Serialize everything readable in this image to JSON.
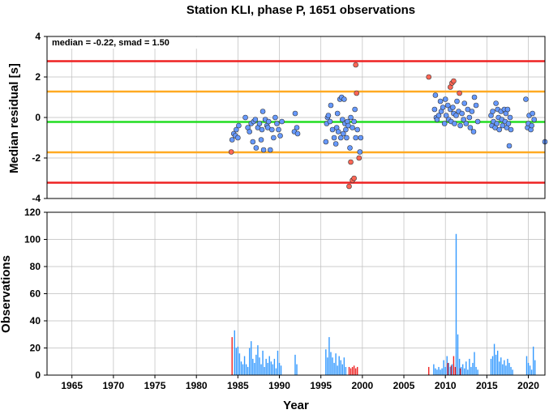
{
  "chart_data": [
    {
      "type": "scatter",
      "title": "Station KLI, phase P, 1651 observations",
      "annotation": "median = -0.22, smad = 1.50",
      "ylabel": "Median residual [s]",
      "xlim": [
        1962,
        2022
      ],
      "ylim": [
        -4,
        4
      ],
      "yticks": [
        -4,
        -2,
        0,
        2,
        4
      ],
      "grid": true,
      "reference_lines": [
        {
          "name": "median",
          "y": -0.22,
          "color": "#22dd22"
        },
        {
          "name": "median + 1 smad",
          "y": 1.28,
          "color": "#ffaa22"
        },
        {
          "name": "median - 1 smad",
          "y": -1.72,
          "color": "#ffaa22"
        },
        {
          "name": "median + 2 smad",
          "y": 2.78,
          "color": "#ee2222"
        },
        {
          "name": "median - 2 smad",
          "y": -3.22,
          "color": "#ee2222"
        }
      ],
      "series": [
        {
          "color": "#6699ff",
          "points": [
            [
              1984.3,
              -1.1
            ],
            [
              1984.5,
              -0.8
            ],
            [
              1984.7,
              -0.9
            ],
            [
              1984.8,
              -0.6
            ],
            [
              1985.0,
              -1.0
            ],
            [
              1985.1,
              -0.4
            ],
            [
              1985.9,
              0.0
            ],
            [
              1986.2,
              -0.5
            ],
            [
              1986.4,
              -0.7
            ],
            [
              1986.6,
              -0.3
            ],
            [
              1986.8,
              -1.2
            ],
            [
              1986.9,
              -0.2
            ],
            [
              1987.1,
              -0.1
            ],
            [
              1987.2,
              -1.5
            ],
            [
              1987.4,
              -0.5
            ],
            [
              1987.6,
              -0.3
            ],
            [
              1987.8,
              -1.1
            ],
            [
              1987.9,
              -0.6
            ],
            [
              1988.0,
              0.3
            ],
            [
              1988.1,
              -1.6
            ],
            [
              1988.3,
              -0.1
            ],
            [
              1988.5,
              -0.4
            ],
            [
              1988.6,
              -0.5
            ],
            [
              1988.7,
              -0.2
            ],
            [
              1988.9,
              -1.6
            ],
            [
              1989.1,
              -0.6
            ],
            [
              1989.3,
              -1.0
            ],
            [
              1989.5,
              0.0
            ],
            [
              1989.7,
              -0.3
            ],
            [
              1989.9,
              -0.6
            ],
            [
              1990.1,
              -0.9
            ],
            [
              1990.3,
              -0.2
            ],
            [
              1991.8,
              -0.7
            ],
            [
              1991.9,
              0.2
            ],
            [
              1992.1,
              -0.5
            ],
            [
              1992.2,
              -0.8
            ],
            [
              1995.6,
              -1.2
            ],
            [
              1995.7,
              -0.3
            ],
            [
              1995.8,
              0.0
            ],
            [
              1995.9,
              0.1
            ],
            [
              1996.1,
              -0.2
            ],
            [
              1996.2,
              0.6
            ],
            [
              1996.4,
              -0.6
            ],
            [
              1996.6,
              -1.0
            ],
            [
              1996.8,
              -1.3
            ],
            [
              1996.9,
              -0.5
            ],
            [
              1997.0,
              0.2
            ],
            [
              1997.1,
              -0.7
            ],
            [
              1997.3,
              0.9
            ],
            [
              1997.4,
              -1.0
            ],
            [
              1997.5,
              1.0
            ],
            [
              1997.6,
              -0.1
            ],
            [
              1997.7,
              -0.8
            ],
            [
              1997.8,
              0.9
            ],
            [
              1997.9,
              -0.3
            ],
            [
              1998.0,
              -0.6
            ],
            [
              1998.1,
              -1.0
            ],
            [
              1998.2,
              -0.2
            ],
            [
              1998.3,
              -0.4
            ],
            [
              1998.5,
              -1.5
            ],
            [
              1998.6,
              0.0
            ],
            [
              1998.8,
              -0.5
            ],
            [
              1999.0,
              -0.2
            ],
            [
              1999.1,
              0.4
            ],
            [
              1999.2,
              -1.0
            ],
            [
              1999.4,
              -0.6
            ],
            [
              1999.7,
              -1.7
            ],
            [
              1999.8,
              -1.0
            ],
            [
              2008.7,
              0.4
            ],
            [
              2008.8,
              1.1
            ],
            [
              2008.9,
              0.0
            ],
            [
              2009.0,
              -0.1
            ],
            [
              2009.2,
              0.1
            ],
            [
              2009.4,
              0.8
            ],
            [
              2009.5,
              0.3
            ],
            [
              2009.7,
              0.5
            ],
            [
              2009.9,
              -0.3
            ],
            [
              2010.0,
              0.9
            ],
            [
              2010.1,
              0.1
            ],
            [
              2010.3,
              0.6
            ],
            [
              2010.4,
              -0.1
            ],
            [
              2010.6,
              0.4
            ],
            [
              2010.7,
              -0.2
            ],
            [
              2010.9,
              0.5
            ],
            [
              2011.0,
              0.2
            ],
            [
              2011.1,
              -0.3
            ],
            [
              2011.3,
              0.1
            ],
            [
              2011.4,
              0.8
            ],
            [
              2011.6,
              0.3
            ],
            [
              2011.8,
              -0.4
            ],
            [
              2012.0,
              0.2
            ],
            [
              2012.2,
              -0.1
            ],
            [
              2012.3,
              0.7
            ],
            [
              2012.5,
              -0.3
            ],
            [
              2012.7,
              0.4
            ],
            [
              2012.9,
              0.0
            ],
            [
              2013.0,
              -0.5
            ],
            [
              2013.2,
              0.3
            ],
            [
              2013.4,
              -0.7
            ],
            [
              2013.5,
              1.0
            ],
            [
              2013.7,
              0.6
            ],
            [
              2013.9,
              -0.2
            ],
            [
              2015.5,
              0.1
            ],
            [
              2015.6,
              -0.4
            ],
            [
              2015.7,
              0.3
            ],
            [
              2015.8,
              -0.2
            ],
            [
              2016.0,
              -0.5
            ],
            [
              2016.1,
              0.7
            ],
            [
              2016.2,
              -0.3
            ],
            [
              2016.3,
              0.4
            ],
            [
              2016.4,
              0.0
            ],
            [
              2016.5,
              -0.6
            ],
            [
              2016.7,
              0.3
            ],
            [
              2016.8,
              -0.1
            ],
            [
              2016.9,
              -0.4
            ],
            [
              2017.1,
              0.4
            ],
            [
              2017.2,
              -0.2
            ],
            [
              2017.3,
              0.2
            ],
            [
              2017.4,
              -0.5
            ],
            [
              2017.5,
              0.4
            ],
            [
              2017.6,
              -0.3
            ],
            [
              2017.7,
              -1.4
            ],
            [
              2017.8,
              0.0
            ],
            [
              2017.9,
              -0.6
            ],
            [
              2019.7,
              0.9
            ],
            [
              2019.9,
              -0.5
            ],
            [
              2020.0,
              -0.3
            ],
            [
              2020.1,
              0.1
            ],
            [
              2020.3,
              -0.6
            ],
            [
              2020.4,
              -0.4
            ],
            [
              2020.5,
              0.2
            ],
            [
              2020.7,
              -0.1
            ],
            [
              2022.0,
              -1.2
            ]
          ]
        },
        {
          "color": "#ff6655",
          "points": [
            [
              1984.2,
              -1.7
            ],
            [
              1998.4,
              -3.4
            ],
            [
              1998.6,
              -2.2
            ],
            [
              1998.8,
              -3.1
            ],
            [
              1999.0,
              -3.0
            ],
            [
              1999.2,
              2.6
            ],
            [
              1999.3,
              1.2
            ],
            [
              1999.6,
              -2.0
            ],
            [
              2008.0,
              2.0
            ],
            [
              2010.6,
              1.5
            ],
            [
              2010.8,
              1.7
            ],
            [
              2011.0,
              1.8
            ],
            [
              2011.7,
              1.2
            ]
          ]
        }
      ]
    },
    {
      "type": "bar",
      "xlabel": "Year",
      "ylabel": "Observations",
      "xlim": [
        1962,
        2022
      ],
      "ylim": [
        0,
        120
      ],
      "xticks": [
        1965,
        1970,
        1975,
        1980,
        1985,
        1990,
        1995,
        2000,
        2005,
        2010,
        2015,
        2020
      ],
      "yticks": [
        0,
        20,
        40,
        60,
        80,
        100,
        120
      ],
      "grid": true,
      "series": [
        {
          "color": "#3399ff",
          "bars": [
            [
              1984.6,
              33
            ],
            [
              1984.8,
              20
            ],
            [
              1985.0,
              21
            ],
            [
              1985.2,
              16
            ],
            [
              1985.4,
              10
            ],
            [
              1985.6,
              8
            ],
            [
              1985.8,
              14
            ],
            [
              1986.0,
              8
            ],
            [
              1986.2,
              6
            ],
            [
              1986.4,
              20
            ],
            [
              1986.6,
              25
            ],
            [
              1986.8,
              12
            ],
            [
              1987.0,
              9
            ],
            [
              1987.2,
              15
            ],
            [
              1987.4,
              22
            ],
            [
              1987.6,
              13
            ],
            [
              1987.8,
              8
            ],
            [
              1988.0,
              18
            ],
            [
              1988.2,
              6
            ],
            [
              1988.4,
              12
            ],
            [
              1988.6,
              9
            ],
            [
              1988.8,
              14
            ],
            [
              1989.0,
              10
            ],
            [
              1989.2,
              8
            ],
            [
              1989.4,
              12
            ],
            [
              1989.6,
              5
            ],
            [
              1989.8,
              18
            ],
            [
              1990.0,
              9
            ],
            [
              1990.2,
              7
            ],
            [
              1991.9,
              15
            ],
            [
              1992.1,
              8
            ],
            [
              1995.6,
              19
            ],
            [
              1995.8,
              13
            ],
            [
              1996.0,
              28
            ],
            [
              1996.2,
              17
            ],
            [
              1996.4,
              13
            ],
            [
              1996.6,
              9
            ],
            [
              1996.8,
              16
            ],
            [
              1997.0,
              7
            ],
            [
              1997.2,
              14
            ],
            [
              1997.4,
              11
            ],
            [
              1997.6,
              8
            ],
            [
              1997.8,
              13
            ],
            [
              1998.0,
              6
            ],
            [
              2008.6,
              8
            ],
            [
              2008.8,
              5
            ],
            [
              2009.0,
              4
            ],
            [
              2009.2,
              6
            ],
            [
              2009.4,
              4
            ],
            [
              2009.6,
              5
            ],
            [
              2009.8,
              11
            ],
            [
              2010.0,
              6
            ],
            [
              2010.2,
              14
            ],
            [
              2010.4,
              9
            ],
            [
              2010.6,
              6
            ],
            [
              2010.8,
              8
            ],
            [
              2011.0,
              8
            ],
            [
              2011.3,
              104
            ],
            [
              2011.5,
              30
            ],
            [
              2011.7,
              12
            ],
            [
              2011.9,
              6
            ],
            [
              2012.1,
              8
            ],
            [
              2012.3,
              5
            ],
            [
              2012.5,
              10
            ],
            [
              2012.7,
              4
            ],
            [
              2012.9,
              12
            ],
            [
              2013.1,
              6
            ],
            [
              2013.3,
              9
            ],
            [
              2013.5,
              17
            ],
            [
              2013.7,
              6
            ],
            [
              2013.9,
              4
            ],
            [
              2015.5,
              12
            ],
            [
              2015.7,
              14
            ],
            [
              2015.9,
              23
            ],
            [
              2016.1,
              15
            ],
            [
              2016.3,
              18
            ],
            [
              2016.5,
              10
            ],
            [
              2016.7,
              13
            ],
            [
              2016.9,
              8
            ],
            [
              2017.1,
              11
            ],
            [
              2017.3,
              7
            ],
            [
              2017.5,
              12
            ],
            [
              2017.7,
              9
            ],
            [
              2017.9,
              6
            ],
            [
              2018.1,
              4
            ],
            [
              2019.8,
              14
            ],
            [
              2020.0,
              9
            ],
            [
              2020.2,
              7
            ],
            [
              2020.4,
              4
            ],
            [
              2020.6,
              21
            ],
            [
              2020.8,
              11
            ]
          ]
        },
        {
          "color": "#ee2222",
          "bars": [
            [
              1984.3,
              28
            ],
            [
              1998.4,
              6
            ],
            [
              1998.6,
              5
            ],
            [
              1998.8,
              6
            ],
            [
              1999.0,
              7
            ],
            [
              1999.2,
              5
            ],
            [
              1999.4,
              6
            ],
            [
              2008.0,
              6
            ],
            [
              2010.3,
              9
            ],
            [
              2010.7,
              7
            ],
            [
              2011.0,
              14
            ],
            [
              2011.2,
              6
            ],
            [
              2011.8,
              5
            ]
          ]
        }
      ]
    }
  ]
}
